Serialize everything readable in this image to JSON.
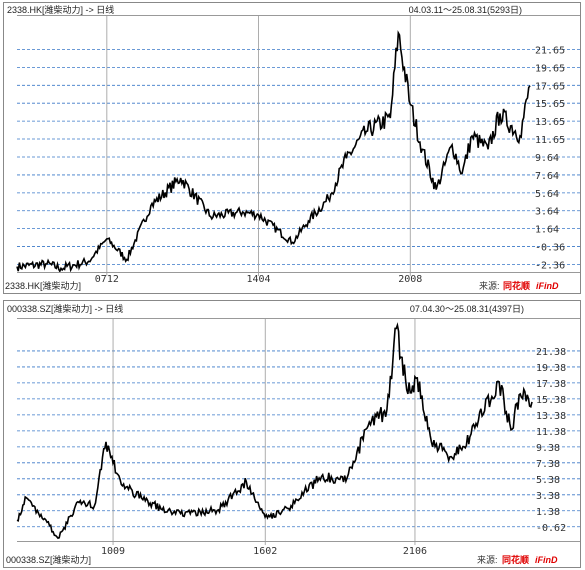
{
  "chart_data": [
    {
      "type": "line",
      "title": "2338.HK[潍柴动力] -> 日线",
      "date_range": "04.03.11～25.08.31(5293日)",
      "footer_code": "2338.HK[潍柴动力]",
      "source_label": "来源:",
      "source_brand": "同花顺",
      "source_brand_suffix": "iFinD",
      "y_ticks": [
        "21.65",
        "19.65",
        "17.65",
        "15.65",
        "13.65",
        "11.65",
        "9.64",
        "7.64",
        "5.64",
        "3.64",
        "1.64",
        "-0.36",
        "-2.36"
      ],
      "x_ticks": [
        "0712",
        "1404",
        "2008"
      ],
      "ylim": [
        -3.2,
        25.5
      ],
      "x": [
        "2004-03",
        "2005-06",
        "2006-01",
        "2007-03",
        "2007-12",
        "2008-10",
        "2009-10",
        "2011-01",
        "2012-04",
        "2013-08",
        "2014-04",
        "2015-09",
        "2016-05",
        "2017-03",
        "2017-12",
        "2018-10",
        "2019-10",
        "2020-02",
        "2020-08",
        "2021-02",
        "2021-09",
        "2022-05",
        "2022-10",
        "2023-03",
        "2023-11",
        "2024-05",
        "2025-03",
        "2025-08"
      ],
      "values": [
        -2.6,
        -2.3,
        -2.8,
        -2.0,
        0.5,
        -1.8,
        4.2,
        7.3,
        3.0,
        3.5,
        3.2,
        0.1,
        2.5,
        5.0,
        9.5,
        12.5,
        14.0,
        23.5,
        15.5,
        10.5,
        6.0,
        11.0,
        7.8,
        12.0,
        10.5,
        14.5,
        12.0,
        17.6
      ]
    },
    {
      "type": "line",
      "title": "000338.SZ[潍柴动力] -> 日线",
      "date_range": "07.04.30～25.08.31(4397日)",
      "footer_code": "000338.SZ[潍柴动力]",
      "source_label": "来源:",
      "source_brand": "同花顺",
      "source_brand_suffix": "iFinD",
      "y_ticks": [
        "21.38",
        "19.38",
        "17.38",
        "15.38",
        "13.38",
        "11.38",
        "9.38",
        "7.38",
        "5.38",
        "3.38",
        "1.38",
        "-0.62"
      ],
      "x_ticks": [
        "1009",
        "1602",
        "2106"
      ],
      "ylim": [
        -2.4,
        25.5
      ],
      "x": [
        "2007-04",
        "2007-08",
        "2008-10",
        "2009-06",
        "2010-01",
        "2010-06",
        "2011-01",
        "2012-06",
        "2013-06",
        "2014-06",
        "2015-06",
        "2016-03",
        "2017-01",
        "2018-01",
        "2019-01",
        "2019-10",
        "2020-06",
        "2020-10",
        "2021-03",
        "2021-07",
        "2022-01",
        "2022-10",
        "2023-06",
        "2024-06",
        "2024-11",
        "2025-03",
        "2025-08"
      ],
      "values": [
        0.2,
        3.0,
        -2.0,
        2.5,
        2.0,
        10.0,
        4.5,
        1.5,
        1.0,
        1.5,
        5.0,
        0.5,
        2.0,
        5.5,
        5.5,
        12.0,
        14.0,
        24.2,
        16.0,
        18.0,
        10.0,
        8.0,
        11.0,
        17.5,
        11.5,
        16.0,
        15.0
      ]
    }
  ]
}
